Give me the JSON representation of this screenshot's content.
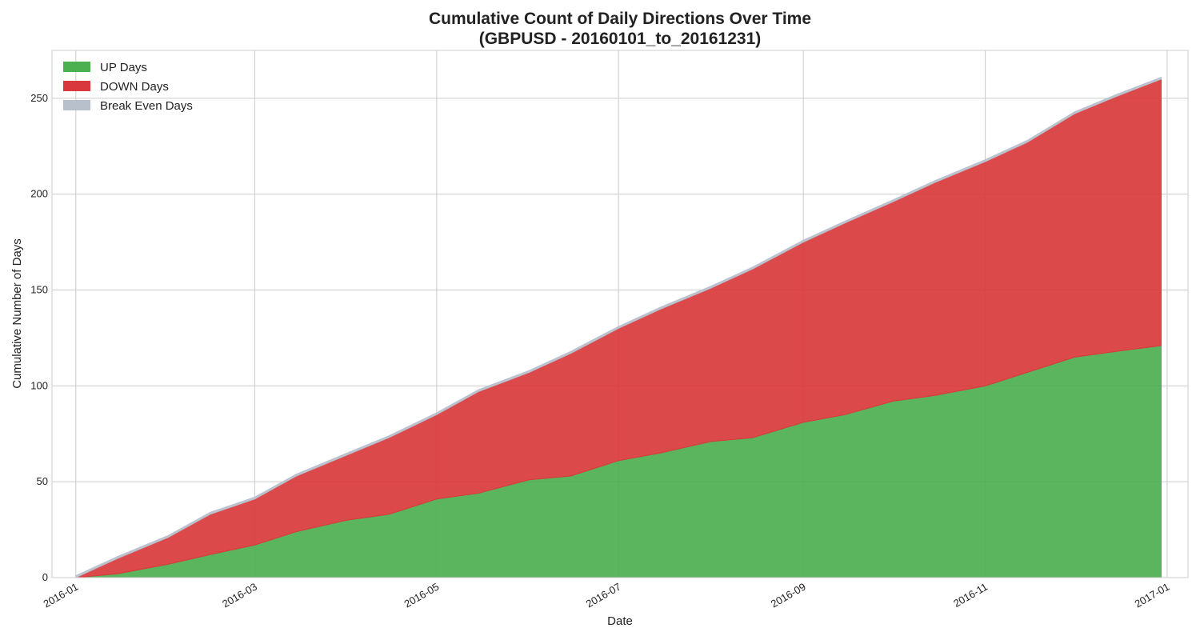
{
  "chart_data": {
    "type": "area",
    "stacked": true,
    "title": "Cumulative Count of Daily Directions Over Time",
    "subtitle": "(GBPUSD - 20160101_to_20161231)",
    "xlabel": "Date",
    "ylabel": "Cumulative Number of Days",
    "xlim": [
      "2015-12-24",
      "2017-01-08"
    ],
    "ylim": [
      0,
      275
    ],
    "x_ticks": [
      "2016-01-01",
      "2016-03-01",
      "2016-05-01",
      "2016-07-01",
      "2016-09-01",
      "2016-11-01",
      "2017-01-01"
    ],
    "x_tick_labels": [
      "2016-01",
      "2016-03",
      "2016-05",
      "2016-07",
      "2016-09",
      "2016-11",
      "2017-01"
    ],
    "y_ticks": [
      0,
      50,
      100,
      150,
      200,
      250
    ],
    "grid": true,
    "legend_position": "top-left",
    "x": [
      "2016-01-01",
      "2016-01-15",
      "2016-02-01",
      "2016-02-15",
      "2016-03-01",
      "2016-03-15",
      "2016-04-01",
      "2016-04-15",
      "2016-05-01",
      "2016-05-15",
      "2016-06-01",
      "2016-06-15",
      "2016-07-01",
      "2016-07-15",
      "2016-08-01",
      "2016-08-15",
      "2016-09-01",
      "2016-09-15",
      "2016-10-01",
      "2016-10-15",
      "2016-11-01",
      "2016-11-15",
      "2016-12-01",
      "2016-12-15",
      "2016-12-30"
    ],
    "series": [
      {
        "name": "UP Days",
        "color": "#4caf50",
        "values": [
          0,
          2,
          7,
          12,
          17,
          24,
          30,
          33,
          41,
          44,
          51,
          53,
          61,
          65,
          71,
          73,
          81,
          85,
          92,
          95,
          100,
          107,
          115,
          118,
          121
        ]
      },
      {
        "name": "DOWN Days",
        "color": "#d9393c",
        "values": [
          0,
          8,
          14,
          21,
          24,
          29,
          34,
          40,
          44,
          53,
          56,
          64,
          69,
          75,
          80,
          88,
          94,
          100,
          104,
          111,
          117,
          120,
          127,
          133,
          139
        ]
      },
      {
        "name": "Break Even Days",
        "color": "#b8c0cc",
        "values": [
          1,
          1,
          1,
          1,
          1,
          1,
          1,
          1,
          1,
          1,
          1,
          1,
          1,
          1,
          1,
          1,
          1,
          1,
          1,
          1,
          1,
          1,
          1,
          1,
          1
        ]
      }
    ]
  }
}
